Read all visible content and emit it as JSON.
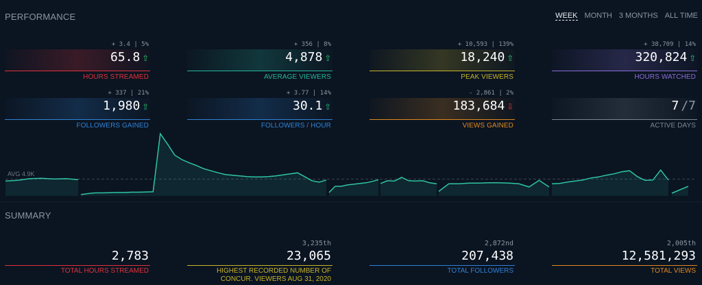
{
  "performance_title": "PERFORMANCE",
  "summary_title": "SUMMARY",
  "range_tabs": [
    "WEEK",
    "MONTH",
    "3 MONTHS",
    "ALL TIME"
  ],
  "active_tab": "WEEK",
  "stats": [
    {
      "delta": "+ 3.4 | 5%",
      "value": "65.8",
      "label": "HOURS STREAMED",
      "color": "#e0323b",
      "trend": "up"
    },
    {
      "delta": "+ 356 | 8%",
      "value": "4,878",
      "label": "AVERAGE VIEWERS",
      "color": "#27b59b",
      "trend": "up"
    },
    {
      "delta": "+ 10,593 | 139%",
      "value": "18,240",
      "label": "PEAK VIEWERS",
      "color": "#c8b52a",
      "trend": "up"
    },
    {
      "delta": "+ 38,709 | 14%",
      "value": "320,824",
      "label": "HOURS WATCHED",
      "color": "#8a6fd6",
      "trend": "up"
    },
    {
      "delta": "+ 337 | 21%",
      "value": "1,980",
      "label": "FOLLOWERS GAINED",
      "color": "#2f83d6",
      "trend": "up"
    },
    {
      "delta": "+ 3.77 | 14%",
      "value": "30.1",
      "label": "FOLLOWERS / HOUR",
      "color": "#2f83d6",
      "trend": "up"
    },
    {
      "delta": "- 2,861 | 2%",
      "value": "183,684",
      "label": "VIEWS GAINED",
      "color": "#e08a1f",
      "trend": "down"
    },
    {
      "delta": "",
      "value": "7",
      "value_suffix": "/7",
      "label": "ACTIVE DAYS",
      "color": "#7c8792",
      "trend": "none"
    }
  ],
  "summary": [
    {
      "rank": "",
      "value": "2,783",
      "label": "TOTAL HOURS STREAMED",
      "color": "#e0323b"
    },
    {
      "rank": "3,235th",
      "value": "23,065",
      "label": "HIGHEST RECORDED NUMBER OF",
      "label2": "CONCUR. VIEWERS AUG 31, 2020",
      "color": "#c8b52a"
    },
    {
      "rank": "2,872nd",
      "value": "207,438",
      "label": "TOTAL FOLLOWERS",
      "color": "#2f83d6"
    },
    {
      "rank": "2,005th",
      "value": "12,581,293",
      "label": "TOTAL VIEWS",
      "color": "#e08a1f"
    }
  ],
  "chart_data": {
    "type": "area",
    "avg_label": "AVG 4.9K",
    "avg_value": 4878,
    "ylim": [
      0,
      18240
    ],
    "segments": [
      [
        4300,
        4500,
        5000,
        5100,
        4900,
        5000,
        4700
      ],
      [
        400,
        700,
        900,
        900,
        950,
        1000,
        1000,
        1100,
        1100,
        1150,
        1200,
        18000,
        15000,
        11800,
        10500,
        9600,
        8800,
        7900,
        7300,
        6700,
        6200,
        6000,
        5800,
        5600,
        5500,
        5500,
        5600,
        5800,
        6100,
        6400,
        6700,
        5600,
        4400,
        4000,
        4600
      ],
      [
        1000,
        2800,
        2800,
        3200,
        3400,
        3600,
        3800,
        4200,
        4700
      ],
      [
        3600,
        4400,
        4300,
        5400,
        4400,
        4300,
        4400,
        3800,
        3500
      ],
      [
        1300,
        3500,
        3500,
        3700,
        3700,
        3800,
        3800,
        3700,
        3500,
        2600,
        4500,
        2600
      ],
      [
        3500,
        3600,
        4000,
        4300,
        4600,
        5200,
        5500,
        6000,
        6400,
        7000,
        7300,
        5600,
        4500,
        4600,
        7500,
        4600
      ],
      [
        800,
        2800
      ]
    ]
  }
}
